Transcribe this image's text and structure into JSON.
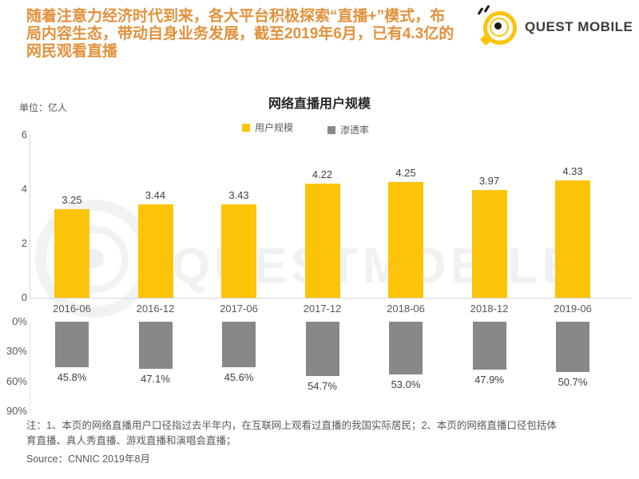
{
  "header": {
    "headline_lines": [
      "随着注意力经济时代到来，各大平台积极探索“直播+”模式，布",
      "局内容生态，带动自身业务发展，截至2019年6月，已有4.3亿的",
      "网民观看直播"
    ],
    "brand": "QUEST MOBILE"
  },
  "chart": {
    "unit_label": "单位：亿人",
    "title": "网络直播用户规模",
    "legend": [
      {
        "label": "用户规模",
        "color": "#FCC408"
      },
      {
        "label": "渗透率",
        "color": "#888888"
      }
    ]
  },
  "chart_data": {
    "type": "bar",
    "title": "网络直播用户规模",
    "unit": "亿人",
    "categories": [
      "2016-06",
      "2016-12",
      "2017-06",
      "2017-12",
      "2018-06",
      "2018-12",
      "2019-06"
    ],
    "series": [
      {
        "name": "用户规模",
        "unit": "亿人",
        "values": [
          3.25,
          3.44,
          3.43,
          4.22,
          4.25,
          3.97,
          4.33
        ],
        "labels": [
          "3.25",
          "3.44",
          "3.43",
          "4.22",
          "4.25",
          "3.97",
          "4.33"
        ],
        "color": "#FCC408",
        "axis": {
          "min": 0,
          "max": 6,
          "ticks": [
            {
              "value": 6,
              "label": "6"
            },
            {
              "value": 4,
              "label": "4"
            },
            {
              "value": 2,
              "label": "2"
            },
            {
              "value": 0,
              "label": "0"
            }
          ]
        }
      },
      {
        "name": "渗透率",
        "unit": "%",
        "values": [
          45.8,
          47.1,
          45.6,
          54.7,
          53.0,
          47.9,
          50.7
        ],
        "labels": [
          "45.8%",
          "47.1%",
          "45.6%",
          "54.7%",
          "53.0%",
          "47.9%",
          "50.7%"
        ],
        "color": "#888888",
        "axis": {
          "min": 0,
          "max": 90,
          "inverted": true,
          "ticks": [
            {
              "value": 0,
              "label": "0%"
            },
            {
              "value": 30,
              "label": "30%"
            },
            {
              "value": 60,
              "label": "60%"
            },
            {
              "value": 90,
              "label": "90%"
            }
          ]
        }
      }
    ],
    "legend_position": "top",
    "grid": false
  },
  "watermark": {
    "text": "QUESTMOBILE"
  },
  "footer": {
    "note_lines": [
      "注：1、本页的网络直播用户口径指过去半年内，在互联网上观看过直播的我国实际居民；2、本页的网络直播口径包括体",
      "育直播、真人秀直播、游戏直播和演唱会直播；"
    ],
    "source": "Source：CNNIC 2019年8月"
  },
  "colors": {
    "headline": "#E2913C",
    "brand_yellow": "#FCC408",
    "bar_gray": "#888888",
    "axis_line": "#D9D9D9"
  }
}
